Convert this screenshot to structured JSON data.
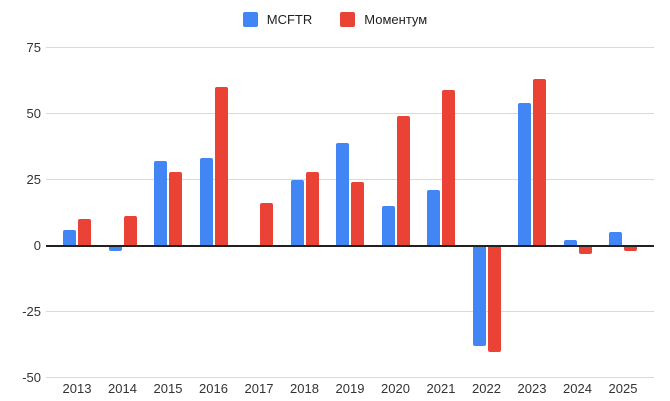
{
  "chart_data": {
    "type": "bar",
    "title": "",
    "xlabel": "",
    "ylabel": "",
    "categories": [
      "2013",
      "2014",
      "2015",
      "2016",
      "2017",
      "2018",
      "2019",
      "2020",
      "2021",
      "2022",
      "2023",
      "2024",
      "2025"
    ],
    "series": [
      {
        "name": "MCFTR",
        "color": "#4285F4",
        "values": [
          6,
          -2,
          32,
          33,
          0,
          25,
          39,
          15,
          21,
          -38,
          54,
          2,
          5
        ]
      },
      {
        "name": "Моментум",
        "color": "#EA4335",
        "values": [
          10,
          11,
          28,
          60,
          16,
          28,
          24,
          49,
          59,
          -40,
          63,
          -3,
          -2
        ]
      }
    ],
    "ylim": [
      -50,
      75
    ],
    "yticks": [
      75,
      50,
      25,
      0,
      -25,
      -50
    ],
    "grid": true,
    "legend_position": "top",
    "axis_line_color": "#212121",
    "gridline_color": "#d9d9d9",
    "label_color": "#333333"
  }
}
